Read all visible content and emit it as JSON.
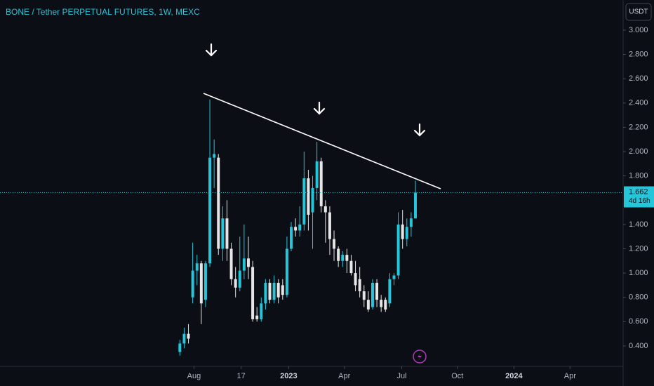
{
  "chart_data": {
    "type": "candlestick",
    "title": "BONE / Tether PERPETUAL FUTURES, 1W, MEXC",
    "currency": "USDT",
    "last_price": 1.662,
    "countdown": "4d 16h",
    "up_color": "#26c6da",
    "down_color": "#e6e6e6",
    "grid": false,
    "xlim": [
      -42,
      103.5
    ],
    "ylim": [
      0.232,
      3.248
    ],
    "xticks": [
      {
        "value": 3.3,
        "label": "Aug"
      },
      {
        "value": 14.3,
        "label": "17"
      },
      {
        "value": 25.4,
        "label": "2023"
      },
      {
        "value": 38.4,
        "label": "Apr"
      },
      {
        "value": 51.8,
        "label": "Jul"
      },
      {
        "value": 64.8,
        "label": "Oct"
      },
      {
        "value": 78,
        "label": "2024"
      },
      {
        "value": 91.1,
        "label": "Apr"
      }
    ],
    "yticks": [
      {
        "value": 0.4,
        "label": "0.400"
      },
      {
        "value": 0.6,
        "label": "0.600"
      },
      {
        "value": 0.8,
        "label": "0.800"
      },
      {
        "value": 1.0,
        "label": "1.000"
      },
      {
        "value": 1.2,
        "label": "1.200"
      },
      {
        "value": 1.4,
        "label": "1.400"
      },
      {
        "value": 1.8,
        "label": "1.800"
      },
      {
        "value": 2.0,
        "label": "2.000"
      },
      {
        "value": 2.2,
        "label": "2.200"
      },
      {
        "value": 2.4,
        "label": "2.400"
      },
      {
        "value": 2.6,
        "label": "2.600"
      },
      {
        "value": 2.8,
        "label": "2.800"
      },
      {
        "value": 3.0,
        "label": "3.000"
      }
    ],
    "candles": {
      "x": [
        0,
        1,
        2,
        3,
        4,
        5,
        6,
        7,
        8,
        9,
        10,
        11,
        12,
        13,
        14,
        15,
        16,
        17,
        18,
        19,
        20,
        21,
        22,
        23,
        24,
        25,
        26,
        27,
        28,
        29,
        30,
        31,
        32,
        33,
        34,
        35,
        36,
        37,
        38,
        39,
        40,
        41,
        42,
        43,
        44,
        45,
        46,
        47,
        48,
        49,
        50,
        51,
        52,
        53,
        54,
        55
      ],
      "open": [
        0.35,
        0.42,
        0.5,
        0.8,
        1.02,
        1.08,
        0.78,
        1.08,
        1.95,
        1.95,
        1.2,
        1.45,
        1.2,
        0.95,
        0.88,
        1.02,
        1.12,
        1.05,
        0.65,
        0.62,
        0.75,
        0.92,
        0.78,
        0.92,
        0.9,
        0.82,
        1.2,
        1.38,
        1.35,
        1.4,
        1.78,
        1.5,
        1.7,
        1.92,
        1.55,
        1.5,
        1.28,
        1.2,
        1.1,
        1.15,
        1.1,
        1.0,
        0.95,
        0.85,
        0.78,
        0.72,
        0.92,
        0.78,
        0.78,
        0.75,
        0.95,
        0.98,
        1.4,
        1.28,
        1.38,
        1.45
      ],
      "high": [
        0.45,
        0.55,
        0.58,
        1.25,
        1.15,
        1.1,
        1.1,
        2.43,
        2.1,
        1.98,
        1.55,
        1.6,
        1.25,
        1.05,
        1.3,
        1.4,
        1.3,
        1.1,
        0.72,
        0.8,
        0.95,
        0.95,
        0.98,
        0.95,
        0.95,
        1.3,
        1.42,
        1.45,
        1.55,
        2.0,
        1.85,
        1.8,
        2.08,
        1.95,
        1.6,
        1.55,
        1.35,
        1.22,
        1.18,
        1.2,
        1.15,
        1.1,
        1.05,
        0.9,
        0.85,
        0.95,
        0.95,
        0.82,
        0.8,
        1.0,
        1.0,
        1.5,
        1.52,
        1.45,
        1.5,
        1.76
      ],
      "low": [
        0.32,
        0.38,
        0.42,
        0.75,
        0.9,
        0.58,
        0.72,
        1.05,
        1.7,
        1.15,
        1.1,
        1.1,
        0.9,
        0.8,
        0.85,
        0.95,
        0.95,
        0.6,
        0.6,
        0.6,
        0.7,
        0.75,
        0.75,
        0.75,
        0.78,
        0.8,
        1.18,
        1.3,
        1.3,
        1.35,
        1.35,
        1.2,
        1.6,
        1.5,
        1.25,
        1.15,
        1.1,
        1.05,
        1.05,
        1.0,
        0.98,
        0.85,
        0.8,
        0.72,
        0.68,
        0.7,
        0.72,
        0.68,
        0.68,
        0.72,
        0.9,
        0.95,
        1.2,
        1.22,
        1.3,
        1.45
      ],
      "close": [
        0.42,
        0.5,
        0.46,
        1.02,
        1.08,
        0.75,
        1.08,
        1.95,
        1.98,
        1.2,
        1.45,
        1.2,
        0.95,
        0.88,
        1.02,
        1.12,
        1.05,
        0.62,
        0.62,
        0.75,
        0.92,
        0.78,
        0.92,
        0.8,
        0.82,
        1.2,
        1.38,
        1.35,
        1.4,
        1.78,
        1.48,
        1.7,
        1.92,
        1.55,
        1.5,
        1.28,
        1.2,
        1.1,
        1.15,
        1.1,
        1.0,
        0.9,
        0.85,
        0.78,
        0.7,
        0.92,
        0.78,
        0.72,
        0.7,
        0.95,
        0.98,
        1.4,
        1.28,
        1.38,
        1.45,
        1.662
      ]
    }
  }
}
